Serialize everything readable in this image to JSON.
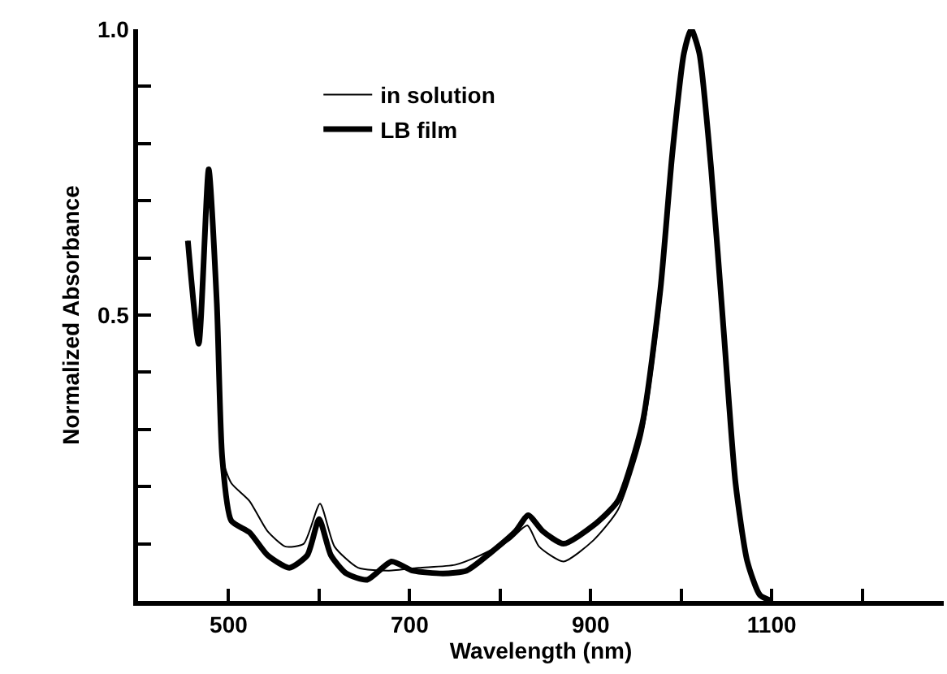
{
  "chart_data": {
    "type": "line",
    "xlabel": "Wavelength (nm)",
    "ylabel": "Normalized Absorbance",
    "xlim": [
      400,
      1290
    ],
    "ylim": [
      0,
      1.0
    ],
    "xticks": [
      500,
      {
        "value": 600,
        "label": null
      },
      700,
      {
        "value": 800,
        "label": null
      },
      900,
      {
        "value": 1000,
        "label": null
      },
      1100,
      {
        "value": 1200,
        "label": null
      }
    ],
    "yticks": [
      {
        "value": 0.1,
        "label": null
      },
      {
        "value": 0.2,
        "label": null
      },
      {
        "value": 0.3,
        "label": null
      },
      {
        "value": 0.4,
        "label": null
      },
      {
        "value": 0.5,
        "label": "0.5"
      },
      {
        "value": 0.6,
        "label": null
      },
      {
        "value": 0.7,
        "label": null
      },
      {
        "value": 0.8,
        "label": null
      },
      {
        "value": 0.9,
        "label": null
      },
      {
        "value": 1.0,
        "label": "1.0"
      }
    ],
    "legend": "top",
    "marker": "none",
    "line_style": "solid",
    "series": [
      {
        "name": "in solution",
        "color": "#000000",
        "x": [
          455,
          467,
          478,
          487,
          493,
          503,
          523,
          543,
          563,
          583,
          601,
          617,
          643,
          677,
          710,
          750,
          777,
          810,
          830,
          843,
          870,
          903,
          930,
          957,
          977,
          990,
          1003,
          1011,
          1020,
          1033,
          1047,
          1060,
          1073,
          1087,
          1100
        ],
        "values": [
          0.63,
          0.45,
          0.755,
          0.52,
          0.25,
          0.206,
          0.175,
          0.122,
          0.095,
          0.1,
          0.17,
          0.095,
          0.058,
          0.053,
          0.058,
          0.063,
          0.079,
          0.106,
          0.132,
          0.095,
          0.069,
          0.106,
          0.159,
          0.29,
          0.52,
          0.77,
          0.958,
          1.0,
          0.958,
          0.757,
          0.47,
          0.206,
          0.069,
          0.01,
          0.0
        ]
      },
      {
        "name": "LB film",
        "color": "#000000",
        "x": [
          455,
          467,
          478,
          487,
          493,
          503,
          523,
          543,
          567,
          587,
          600,
          613,
          630,
          653,
          680,
          703,
          737,
          763,
          790,
          817,
          831,
          847,
          870,
          903,
          930,
          957,
          977,
          990,
          1003,
          1011,
          1020,
          1033,
          1047,
          1060,
          1073,
          1087,
          1100
        ],
        "values": [
          0.63,
          0.45,
          0.755,
          0.52,
          0.25,
          0.14,
          0.12,
          0.08,
          0.058,
          0.08,
          0.143,
          0.08,
          0.048,
          0.037,
          0.069,
          0.053,
          0.048,
          0.053,
          0.085,
          0.122,
          0.15,
          0.122,
          0.1,
          0.132,
          0.175,
          0.31,
          0.545,
          0.78,
          0.958,
          1.0,
          0.958,
          0.757,
          0.47,
          0.206,
          0.069,
          0.01,
          0.0
        ]
      }
    ]
  }
}
